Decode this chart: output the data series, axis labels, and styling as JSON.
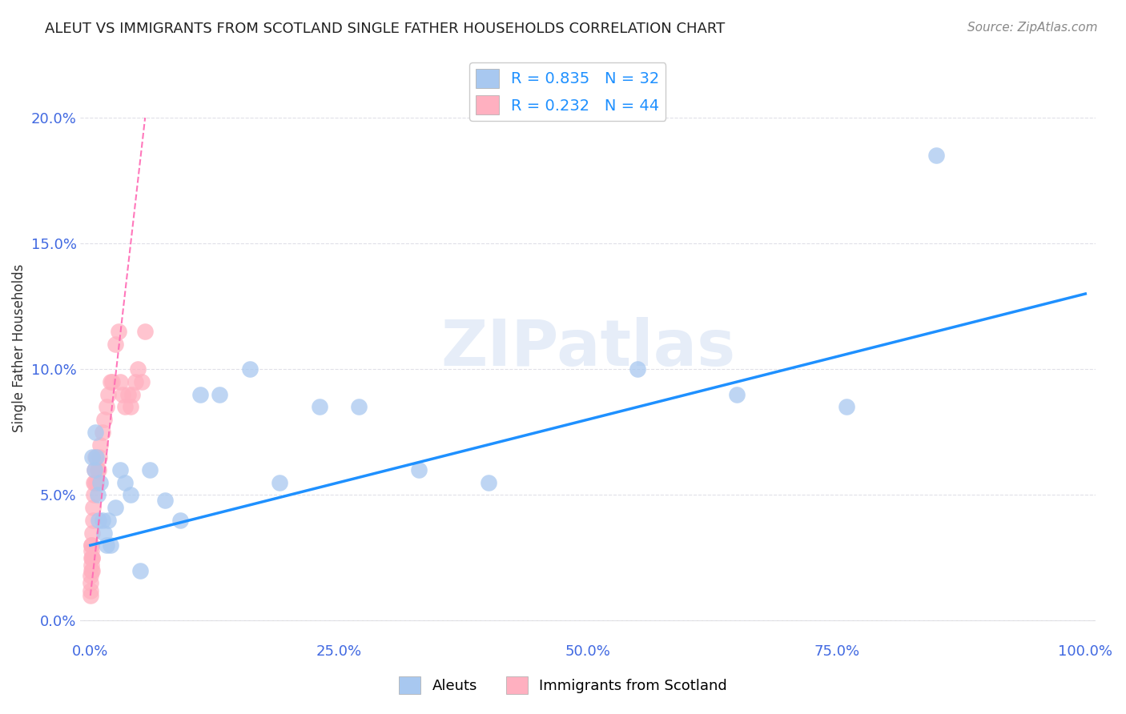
{
  "title": "ALEUT VS IMMIGRANTS FROM SCOTLAND SINGLE FATHER HOUSEHOLDS CORRELATION CHART",
  "source": "Source: ZipAtlas.com",
  "ylabel": "Single Father Households",
  "watermark": "ZIPatlas",
  "background_color": "#ffffff",
  "grid_color": "#e0e0e8",
  "aleuts": {
    "x": [
      0.002,
      0.004,
      0.005,
      0.006,
      0.007,
      0.008,
      0.01,
      0.012,
      0.014,
      0.016,
      0.018,
      0.02,
      0.025,
      0.03,
      0.035,
      0.04,
      0.05,
      0.06,
      0.075,
      0.09,
      0.11,
      0.13,
      0.16,
      0.19,
      0.23,
      0.27,
      0.33,
      0.4,
      0.55,
      0.65,
      0.76,
      0.85
    ],
    "y": [
      0.065,
      0.06,
      0.075,
      0.065,
      0.05,
      0.04,
      0.055,
      0.04,
      0.035,
      0.03,
      0.04,
      0.03,
      0.045,
      0.06,
      0.055,
      0.05,
      0.02,
      0.06,
      0.048,
      0.04,
      0.09,
      0.09,
      0.1,
      0.055,
      0.085,
      0.085,
      0.06,
      0.055,
      0.1,
      0.09,
      0.085,
      0.185
    ],
    "R": 0.835,
    "N": 32
  },
  "scotland": {
    "x": [
      0.0002,
      0.0003,
      0.0004,
      0.0005,
      0.0006,
      0.0007,
      0.0008,
      0.0009,
      0.001,
      0.0012,
      0.0014,
      0.0016,
      0.0018,
      0.002,
      0.0022,
      0.0025,
      0.003,
      0.0035,
      0.004,
      0.0045,
      0.005,
      0.006,
      0.007,
      0.008,
      0.009,
      0.01,
      0.012,
      0.014,
      0.016,
      0.018,
      0.02,
      0.022,
      0.025,
      0.028,
      0.03,
      0.032,
      0.035,
      0.038,
      0.04,
      0.042,
      0.045,
      0.048,
      0.052,
      0.055
    ],
    "y": [
      0.01,
      0.012,
      0.015,
      0.018,
      0.02,
      0.022,
      0.025,
      0.028,
      0.03,
      0.03,
      0.025,
      0.02,
      0.025,
      0.035,
      0.04,
      0.045,
      0.05,
      0.055,
      0.055,
      0.06,
      0.065,
      0.055,
      0.06,
      0.06,
      0.065,
      0.07,
      0.075,
      0.08,
      0.085,
      0.09,
      0.095,
      0.095,
      0.11,
      0.115,
      0.095,
      0.09,
      0.085,
      0.09,
      0.085,
      0.09,
      0.095,
      0.1,
      0.095,
      0.115
    ],
    "R": 0.232,
    "N": 44
  },
  "xlim": [
    -0.01,
    1.01
  ],
  "ylim": [
    -0.008,
    0.225
  ],
  "xticks": [
    0.0,
    0.25,
    0.5,
    0.75,
    1.0
  ],
  "yticks": [
    0.0,
    0.05,
    0.1,
    0.15,
    0.2
  ],
  "aleut_line_color": "#1e90ff",
  "scotland_line_color": "#ff69b4",
  "aleut_dot_color": "#a8c8f0",
  "scotland_dot_color": "#ffb0c0",
  "tick_color": "#4169e1",
  "title_fontsize": 13,
  "source_fontsize": 11,
  "tick_fontsize": 13,
  "ylabel_fontsize": 12
}
